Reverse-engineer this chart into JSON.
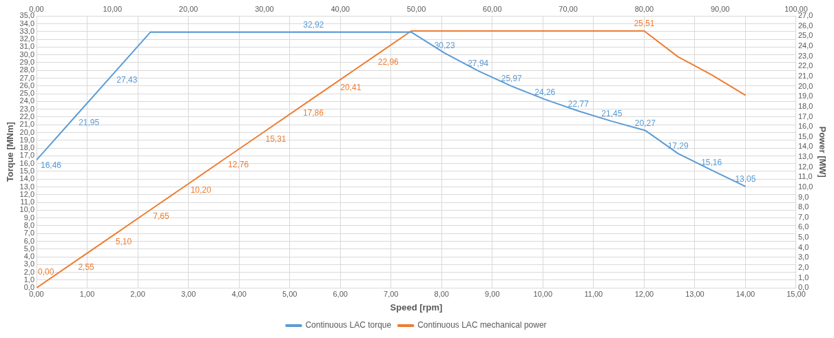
{
  "chart_data": {
    "type": "line",
    "xlabel": "Speed [rpm]",
    "ylabel": "Torque [MNm]",
    "y2label": "Power [MW]",
    "grid": true,
    "legend": "bottom",
    "marker": "none",
    "line_style": "solid",
    "xlim": [
      0,
      15
    ],
    "xticks": [
      {
        "value": 0,
        "label": "0,00"
      },
      {
        "value": 1,
        "label": "1,00"
      },
      {
        "value": 2,
        "label": "2,00"
      },
      {
        "value": 3,
        "label": "3,00"
      },
      {
        "value": 4,
        "label": "4,00"
      },
      {
        "value": 5,
        "label": "5,00"
      },
      {
        "value": 6,
        "label": "6,00"
      },
      {
        "value": 7,
        "label": "7,00"
      },
      {
        "value": 8,
        "label": "8,00"
      },
      {
        "value": 9,
        "label": "9,00"
      },
      {
        "value": 10,
        "label": "10,00"
      },
      {
        "value": 11,
        "label": "11,00"
      },
      {
        "value": 12,
        "label": "12,00"
      },
      {
        "value": 13,
        "label": "13,00"
      },
      {
        "value": 14,
        "label": "14,00"
      },
      {
        "value": 15,
        "label": "15,00"
      }
    ],
    "x2lim": [
      0,
      100
    ],
    "x2ticks": [
      {
        "value": 0,
        "label": "0,00"
      },
      {
        "value": 10,
        "label": "10,00"
      },
      {
        "value": 20,
        "label": "20,00"
      },
      {
        "value": 30,
        "label": "30,00"
      },
      {
        "value": 40,
        "label": "40,00"
      },
      {
        "value": 50,
        "label": "50,00"
      },
      {
        "value": 60,
        "label": "60,00"
      },
      {
        "value": 70,
        "label": "70,00"
      },
      {
        "value": 80,
        "label": "80,00"
      },
      {
        "value": 90,
        "label": "90,00"
      },
      {
        "value": 100,
        "label": "100,00"
      }
    ],
    "ylim": [
      0,
      35
    ],
    "yticks": [
      {
        "value": 0,
        "label": "0,0"
      },
      {
        "value": 1,
        "label": "1,0"
      },
      {
        "value": 2,
        "label": "2,0"
      },
      {
        "value": 3,
        "label": "3,0"
      },
      {
        "value": 4,
        "label": "4,0"
      },
      {
        "value": 5,
        "label": "5,0"
      },
      {
        "value": 6,
        "label": "6,0"
      },
      {
        "value": 7,
        "label": "7,0"
      },
      {
        "value": 8,
        "label": "8,0"
      },
      {
        "value": 9,
        "label": "9,0"
      },
      {
        "value": 10,
        "label": "10,0"
      },
      {
        "value": 11,
        "label": "11,0"
      },
      {
        "value": 12,
        "label": "12,0"
      },
      {
        "value": 13,
        "label": "13,0"
      },
      {
        "value": 14,
        "label": "14,0"
      },
      {
        "value": 15,
        "label": "15,0"
      },
      {
        "value": 16,
        "label": "16,0"
      },
      {
        "value": 17,
        "label": "17,0"
      },
      {
        "value": 18,
        "label": "18,0"
      },
      {
        "value": 19,
        "label": "19,0"
      },
      {
        "value": 20,
        "label": "20,0"
      },
      {
        "value": 21,
        "label": "21,0"
      },
      {
        "value": 22,
        "label": "22,0"
      },
      {
        "value": 23,
        "label": "23,0"
      },
      {
        "value": 24,
        "label": "24,0"
      },
      {
        "value": 25,
        "label": "25,0"
      },
      {
        "value": 26,
        "label": "26,0"
      },
      {
        "value": 27,
        "label": "27,0"
      },
      {
        "value": 28,
        "label": "28,0"
      },
      {
        "value": 29,
        "label": "29,0"
      },
      {
        "value": 30,
        "label": "30,0"
      },
      {
        "value": 31,
        "label": "31,0"
      },
      {
        "value": 32,
        "label": "32,0"
      },
      {
        "value": 33,
        "label": "33,0"
      },
      {
        "value": 34,
        "label": "34,0"
      },
      {
        "value": 35,
        "label": "35,0"
      }
    ],
    "y2lim": [
      0,
      27
    ],
    "y2ticks": [
      {
        "value": 0,
        "label": "0,0"
      },
      {
        "value": 1,
        "label": "1,0"
      },
      {
        "value": 2,
        "label": "2,0"
      },
      {
        "value": 3,
        "label": "3,0"
      },
      {
        "value": 4,
        "label": "4,0"
      },
      {
        "value": 5,
        "label": "5,0"
      },
      {
        "value": 6,
        "label": "6,0"
      },
      {
        "value": 7,
        "label": "7,0"
      },
      {
        "value": 8,
        "label": "8,0"
      },
      {
        "value": 9,
        "label": "9,0"
      },
      {
        "value": 10,
        "label": "10,0"
      },
      {
        "value": 11,
        "label": "11,0"
      },
      {
        "value": 12,
        "label": "12,0"
      },
      {
        "value": 13,
        "label": "13,0"
      },
      {
        "value": 14,
        "label": "14,0"
      },
      {
        "value": 15,
        "label": "15,0"
      },
      {
        "value": 16,
        "label": "16,0"
      },
      {
        "value": 17,
        "label": "17,0"
      },
      {
        "value": 18,
        "label": "18,0"
      },
      {
        "value": 19,
        "label": "19,0"
      },
      {
        "value": 20,
        "label": "20,0"
      },
      {
        "value": 21,
        "label": "21,0"
      },
      {
        "value": 22,
        "label": "22,0"
      },
      {
        "value": 23,
        "label": "23,0"
      },
      {
        "value": 24,
        "label": "24,0"
      },
      {
        "value": 25,
        "label": "25,0"
      },
      {
        "value": 26,
        "label": "26,0"
      },
      {
        "value": 27,
        "label": "27,0"
      }
    ],
    "series": [
      {
        "name": "Continuous LAC torque",
        "color": "#5b9bd5",
        "x": [
          0,
          0.75,
          1.5,
          2.25,
          5.47,
          7.4,
          8.06,
          8.72,
          9.38,
          10.04,
          10.7,
          11.36,
          12.02,
          12.67,
          13.33,
          14
        ],
        "values": [
          16.46,
          21.95,
          27.43,
          32.92,
          32.92,
          32.92,
          30.23,
          27.94,
          25.97,
          24.26,
          22.77,
          21.45,
          20.27,
          17.29,
          15.16,
          13.05
        ],
        "value_labels": [
          "16,46",
          "21,95",
          "27,43",
          null,
          "32,92",
          null,
          "30,23",
          "27,94",
          "25,97",
          "24,26",
          "22,77",
          "21,45",
          "20,27",
          "17,29",
          "15,16",
          "13,05"
        ]
      },
      {
        "name": "Continuous LAC mechanical power",
        "color": "#ed7d31",
        "axis": "y2",
        "x": [
          0,
          0.74,
          1.48,
          2.22,
          2.96,
          3.7,
          4.44,
          5.18,
          5.92,
          6.66,
          7.4,
          12,
          12.67,
          13.33,
          14
        ],
        "values": [
          0,
          2.55,
          5.1,
          7.65,
          10.2,
          12.76,
          15.31,
          17.86,
          20.41,
          22.96,
          25.51,
          25.51,
          22.94,
          21.16,
          19.13
        ],
        "value_labels": [
          "0,00",
          "2,55",
          "5,10",
          "7,65",
          "10,20",
          "12,76",
          "15,31",
          "17,86",
          "20,41",
          "22,96",
          null,
          "25,51",
          null,
          null,
          null
        ]
      }
    ]
  }
}
